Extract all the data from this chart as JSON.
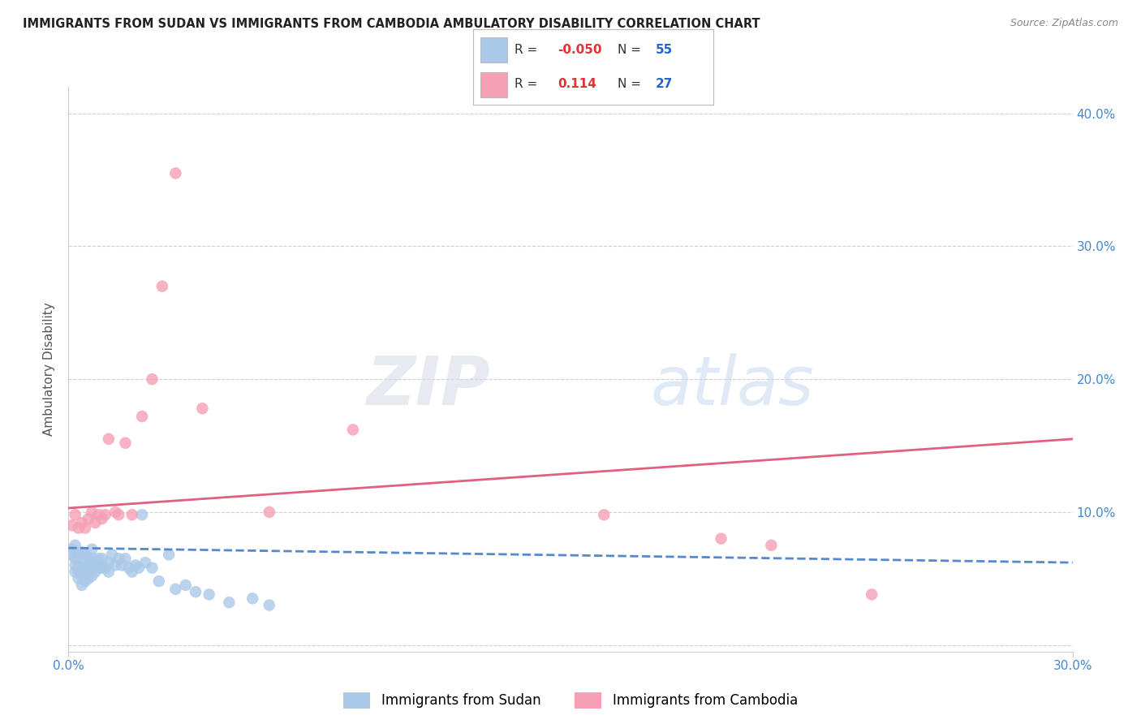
{
  "title": "IMMIGRANTS FROM SUDAN VS IMMIGRANTS FROM CAMBODIA AMBULATORY DISABILITY CORRELATION CHART",
  "source": "Source: ZipAtlas.com",
  "ylabel": "Ambulatory Disability",
  "xlim": [
    0.0,
    0.3
  ],
  "ylim": [
    -0.005,
    0.42
  ],
  "y_ticks": [
    0.0,
    0.1,
    0.2,
    0.3,
    0.4
  ],
  "y_tick_labels": [
    "",
    "10.0%",
    "20.0%",
    "30.0%",
    "40.0%"
  ],
  "grid_color": "#d0d0d0",
  "sudan_color": "#aac8e8",
  "cambodia_color": "#f5a0b5",
  "sudan_R": -0.05,
  "sudan_N": 55,
  "cambodia_R": 0.114,
  "cambodia_N": 27,
  "sudan_line_color": "#5588cc",
  "cambodia_line_color": "#e06080",
  "watermark_text": "ZIPatlas",
  "sudan_x": [
    0.001,
    0.001,
    0.002,
    0.002,
    0.002,
    0.002,
    0.003,
    0.003,
    0.003,
    0.003,
    0.004,
    0.004,
    0.004,
    0.004,
    0.005,
    0.005,
    0.005,
    0.005,
    0.006,
    0.006,
    0.006,
    0.007,
    0.007,
    0.007,
    0.007,
    0.008,
    0.008,
    0.009,
    0.009,
    0.01,
    0.01,
    0.011,
    0.012,
    0.012,
    0.013,
    0.014,
    0.015,
    0.016,
    0.017,
    0.018,
    0.019,
    0.02,
    0.021,
    0.022,
    0.023,
    0.025,
    0.027,
    0.03,
    0.032,
    0.035,
    0.038,
    0.042,
    0.048,
    0.055,
    0.06
  ],
  "sudan_y": [
    0.068,
    0.072,
    0.055,
    0.06,
    0.065,
    0.075,
    0.05,
    0.055,
    0.06,
    0.068,
    0.045,
    0.052,
    0.058,
    0.07,
    0.048,
    0.055,
    0.062,
    0.068,
    0.05,
    0.058,
    0.065,
    0.052,
    0.058,
    0.065,
    0.072,
    0.055,
    0.062,
    0.058,
    0.065,
    0.058,
    0.065,
    0.058,
    0.055,
    0.062,
    0.068,
    0.06,
    0.065,
    0.06,
    0.065,
    0.058,
    0.055,
    0.06,
    0.058,
    0.098,
    0.062,
    0.058,
    0.048,
    0.068,
    0.042,
    0.045,
    0.04,
    0.038,
    0.032,
    0.035,
    0.03
  ],
  "cambodia_x": [
    0.001,
    0.002,
    0.003,
    0.004,
    0.005,
    0.006,
    0.007,
    0.008,
    0.009,
    0.01,
    0.011,
    0.012,
    0.014,
    0.015,
    0.017,
    0.019,
    0.022,
    0.025,
    0.028,
    0.032,
    0.04,
    0.06,
    0.085,
    0.16,
    0.195,
    0.21,
    0.24
  ],
  "cambodia_y": [
    0.09,
    0.098,
    0.088,
    0.092,
    0.088,
    0.095,
    0.1,
    0.092,
    0.098,
    0.095,
    0.098,
    0.155,
    0.1,
    0.098,
    0.152,
    0.098,
    0.172,
    0.2,
    0.27,
    0.355,
    0.178,
    0.1,
    0.162,
    0.098,
    0.08,
    0.075,
    0.038
  ],
  "sudan_trend_x": [
    0.0,
    0.3
  ],
  "sudan_trend_y": [
    0.073,
    0.062
  ],
  "cambodia_trend_x": [
    0.0,
    0.3
  ],
  "cambodia_trend_y": [
    0.103,
    0.155
  ]
}
